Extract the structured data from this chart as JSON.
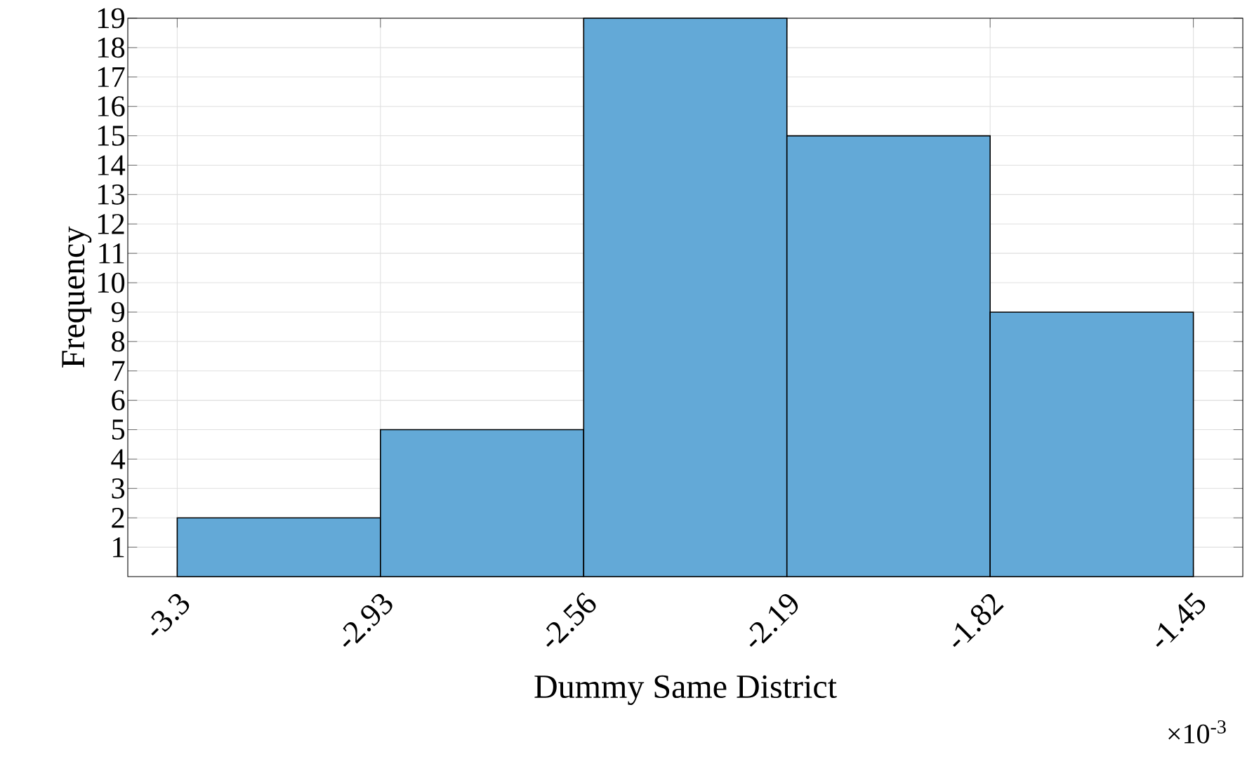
{
  "chart_data": {
    "type": "histogram",
    "xlabel": "Dummy Same District",
    "ylabel": "Frequency",
    "bins": [
      -3.3,
      -2.93,
      -2.56,
      -2.19,
      -1.82,
      -1.45
    ],
    "values": [
      2,
      5,
      19,
      15,
      9
    ],
    "color": "#63a9d7",
    "xlim": [
      -3.39,
      -1.36
    ],
    "ylim": [
      0,
      19
    ],
    "xticks": [
      -3.3,
      -2.93,
      -2.56,
      -2.19,
      -1.82,
      -1.45
    ],
    "yticks": [
      1,
      2,
      3,
      4,
      5,
      6,
      7,
      8,
      9,
      10,
      11,
      12,
      13,
      14,
      15,
      16,
      17,
      18,
      19
    ],
    "grid": true,
    "annotations": [
      "×10$^{-3}$"
    ]
  }
}
